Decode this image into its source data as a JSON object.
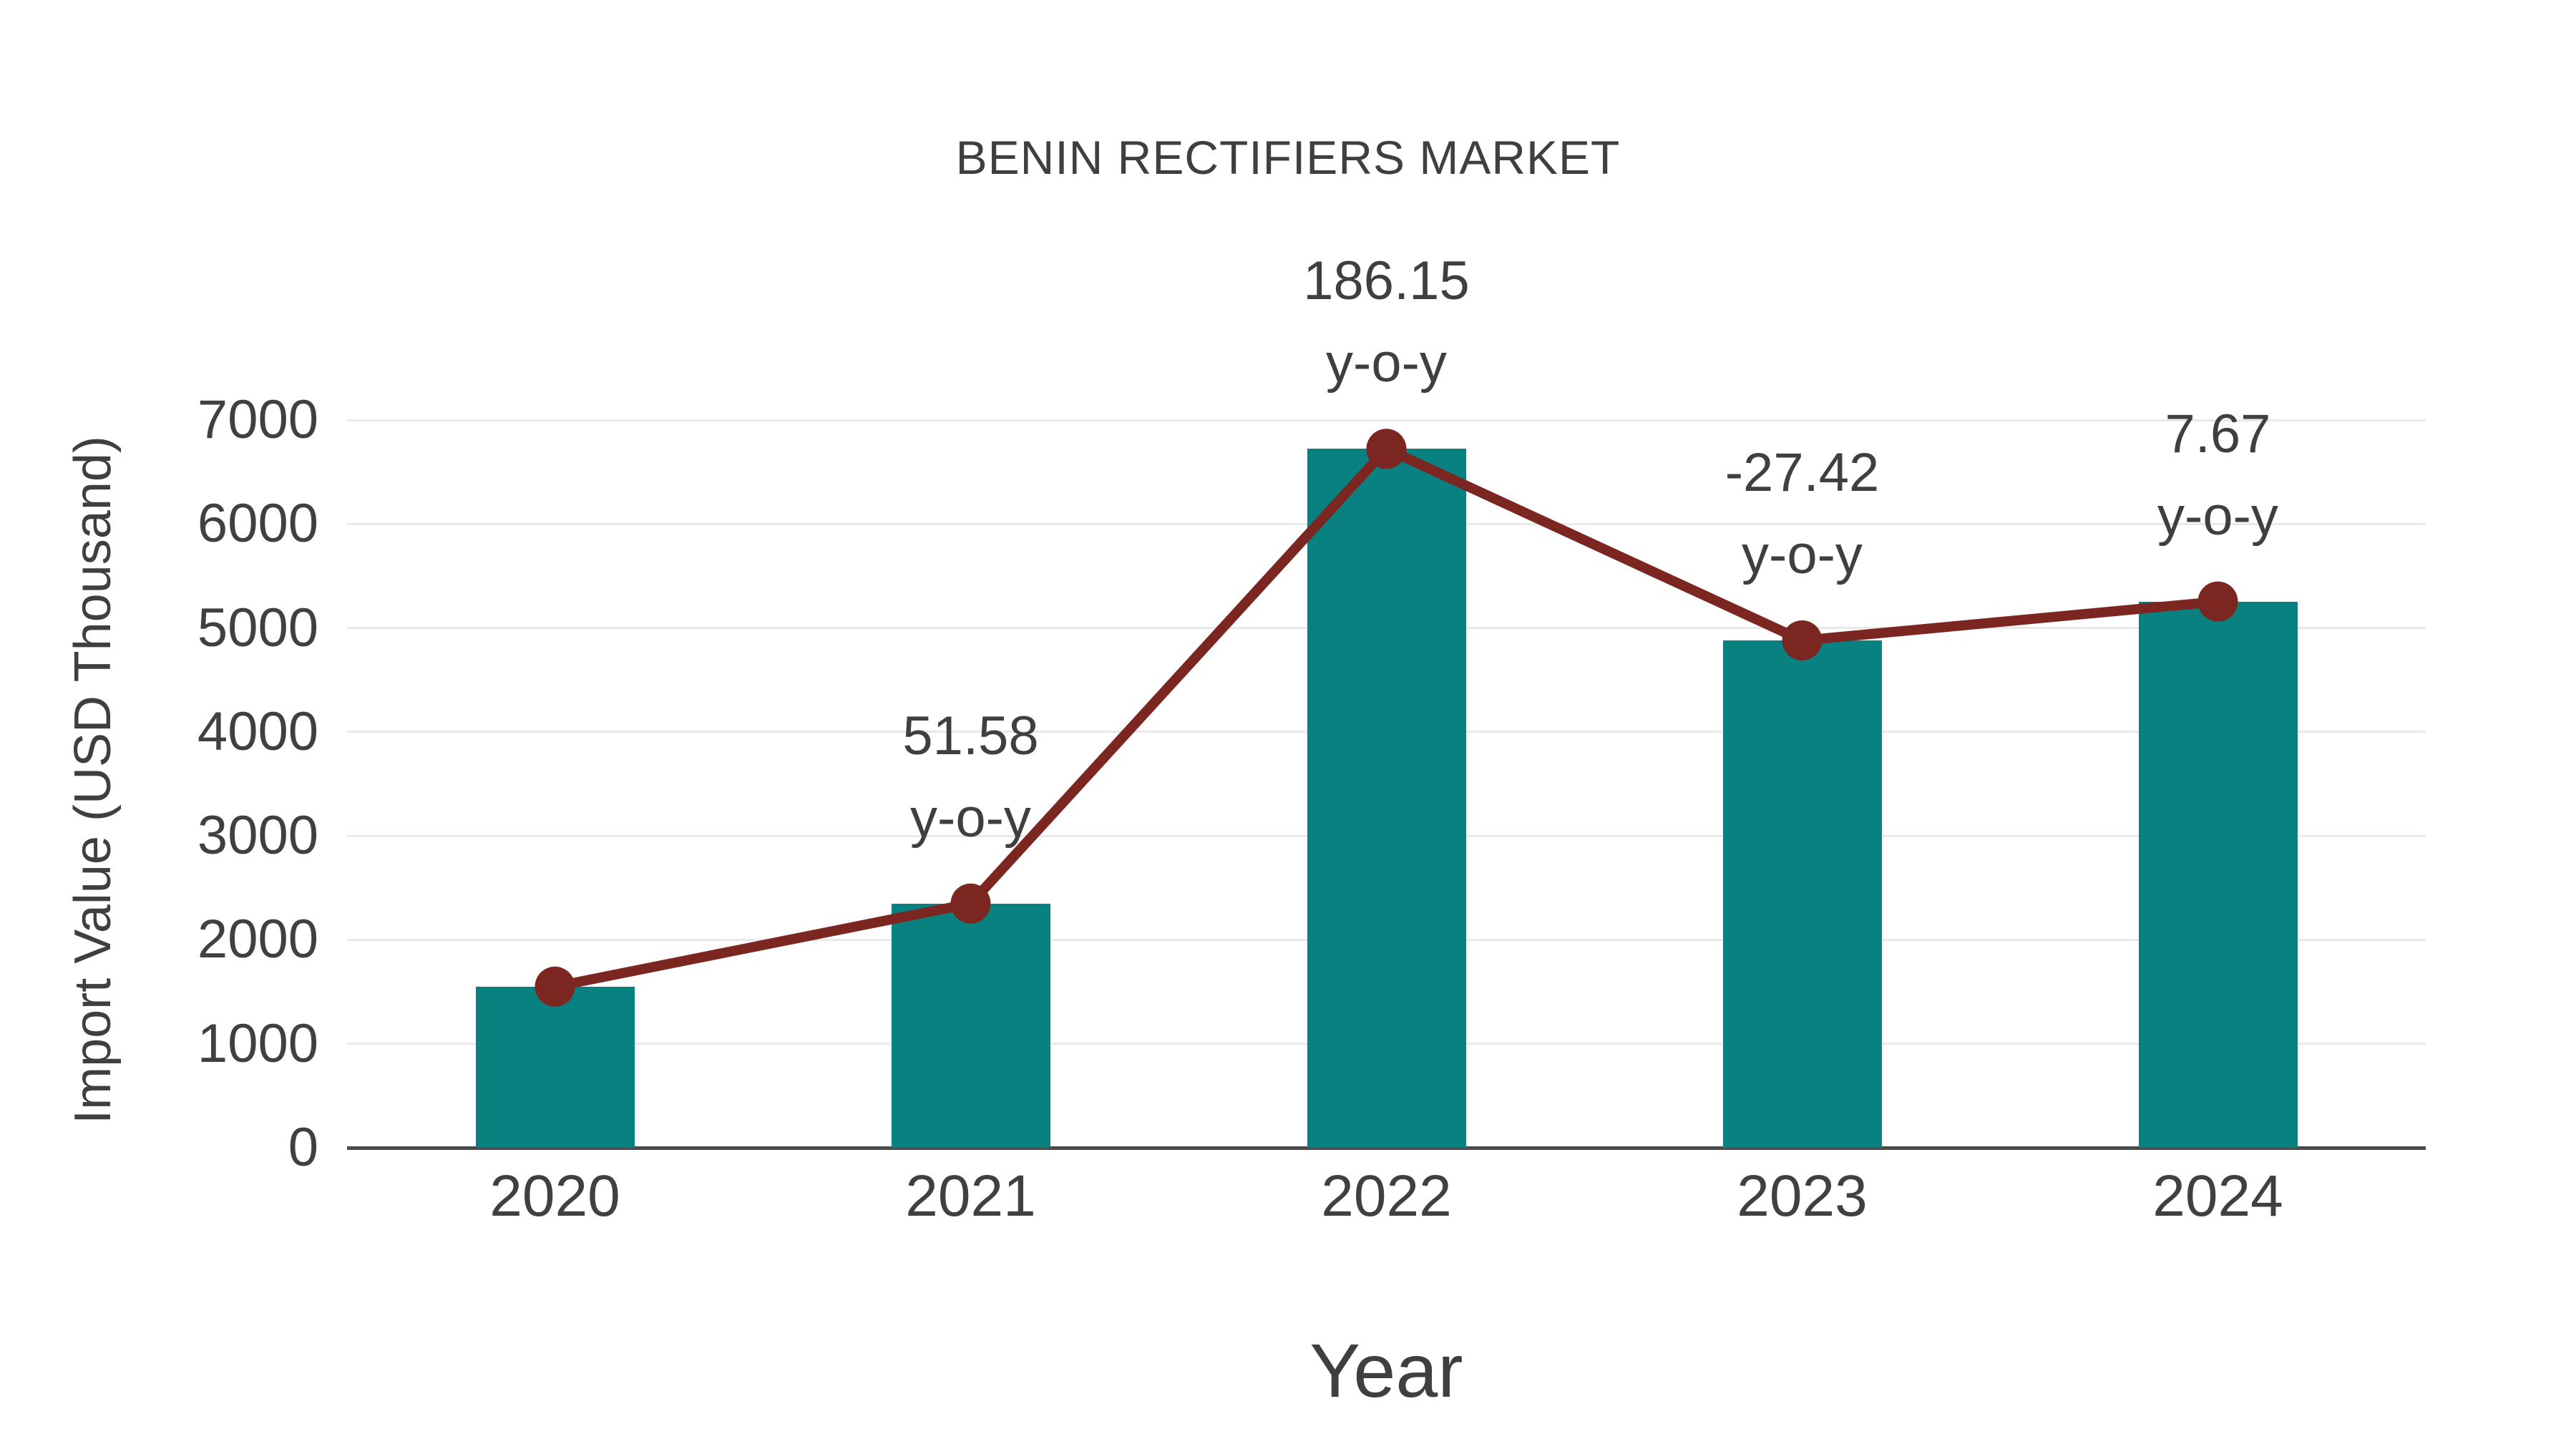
{
  "chart_data": {
    "type": "bar",
    "overlay": "line",
    "title": "BENIN RECTIFIERS MARKET",
    "xlabel": "Year",
    "ylabel": "Import Value (USD Thousand)",
    "categories": [
      "2020",
      "2021",
      "2022",
      "2023",
      "2024"
    ],
    "series": [
      {
        "name": "Import Value (USD Thousand)",
        "type": "bar",
        "values": [
          1550,
          2349,
          6723,
          4880,
          5254
        ]
      },
      {
        "name": "Year-over-Year Trend",
        "type": "line",
        "values": [
          1550,
          2349,
          6723,
          4880,
          5254
        ]
      }
    ],
    "annotations": [
      {
        "category": "2021",
        "value_label": "51.58",
        "suffix": "y-o-y"
      },
      {
        "category": "2022",
        "value_label": "186.15",
        "suffix": "y-o-y"
      },
      {
        "category": "2023",
        "value_label": "-27.42",
        "suffix": "y-o-y"
      },
      {
        "category": "2024",
        "value_label": "7.67",
        "suffix": "y-o-y"
      }
    ],
    "ylim": [
      0,
      7000
    ],
    "yticks": [
      0,
      1000,
      2000,
      3000,
      4000,
      5000,
      6000,
      7000
    ],
    "grid": true,
    "legend": "none"
  },
  "colors": {
    "bar": "#0A8181",
    "line": "#7C2622",
    "marker": "#7C2622",
    "text": "#404040",
    "grid": "#E9E9E9",
    "axis": "#4A4A4A",
    "background": "#FFFFFF"
  }
}
